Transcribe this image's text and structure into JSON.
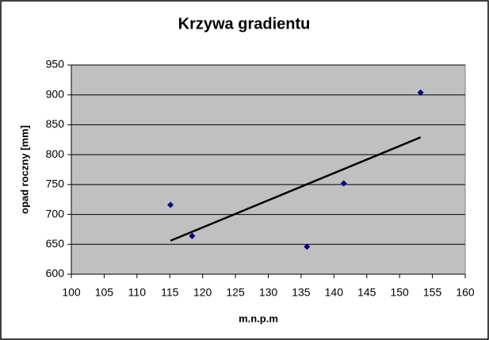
{
  "chart_data": {
    "type": "scatter",
    "title": "Krzywa gradientu",
    "x_label": "m.n.p.m",
    "y_label": "opad roczny [mm]",
    "x": [
      115.1,
      118.4,
      135.9,
      141.5,
      153.2
    ],
    "values": [
      716,
      664,
      646,
      752,
      904
    ],
    "color": "#000080",
    "trendline": {
      "x": [
        115.1,
        153.2
      ],
      "y": [
        656,
        829
      ],
      "color": "#000000"
    },
    "xlim": [
      100,
      160
    ],
    "xticks": [
      100,
      105,
      110,
      115,
      120,
      125,
      130,
      135,
      140,
      145,
      150,
      155,
      160
    ],
    "ylim": [
      600,
      950
    ],
    "yticks": [
      600,
      650,
      700,
      750,
      800,
      850,
      900,
      950
    ],
    "grid": true,
    "plot_background": "#c0c0c0"
  }
}
